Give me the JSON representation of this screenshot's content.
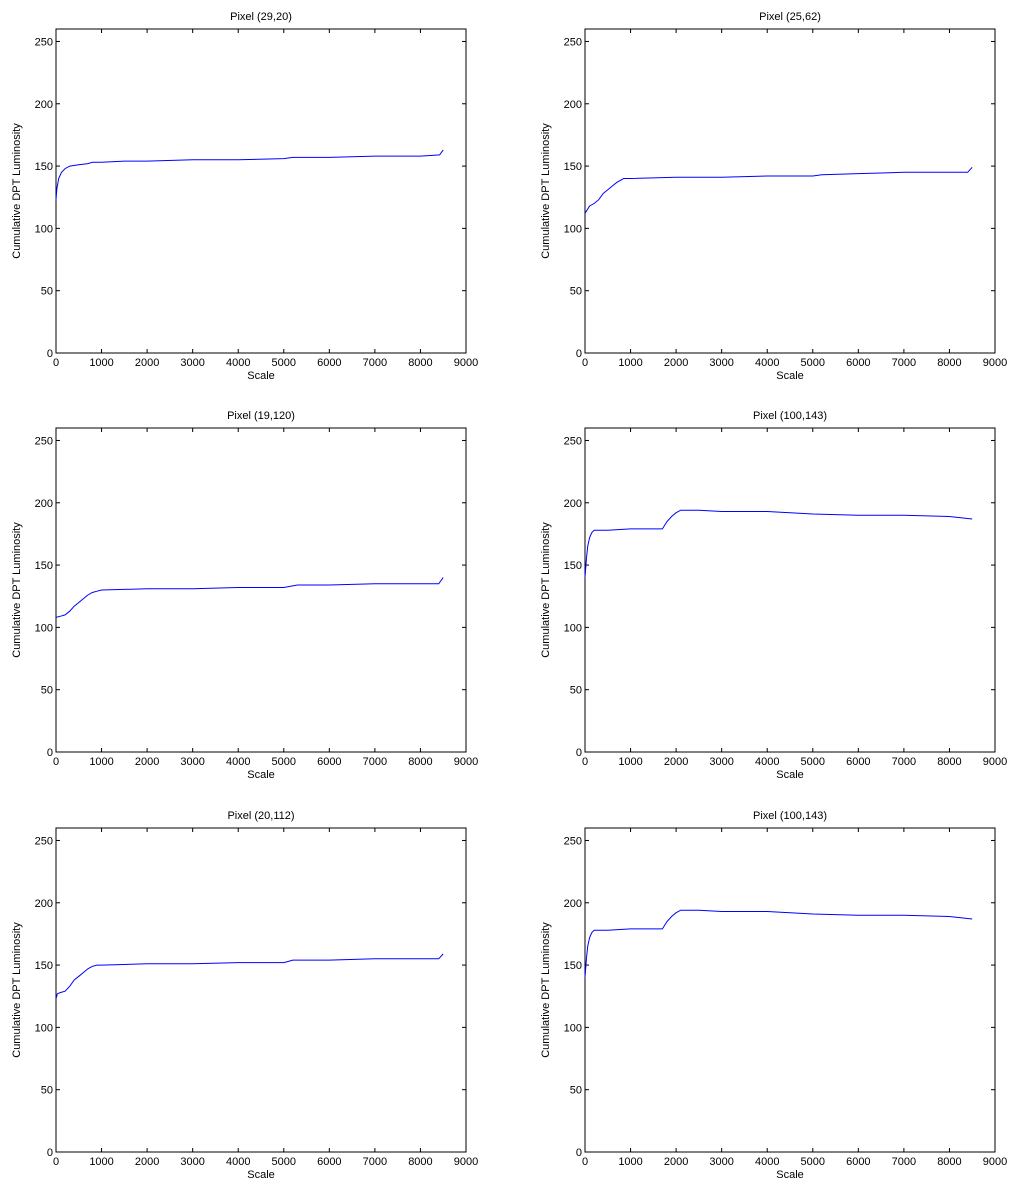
{
  "chart_data": [
    {
      "type": "line",
      "title": "Pixel (29,20)",
      "xlabel": "Scale",
      "ylabel": "Cumulative DPT Luminosity",
      "xlim": [
        0,
        9000
      ],
      "ylim": [
        0,
        260
      ],
      "xticks": [
        0,
        1000,
        2000,
        3000,
        4000,
        5000,
        6000,
        7000,
        8000,
        9000
      ],
      "yticks": [
        0,
        50,
        100,
        150,
        200,
        250
      ],
      "grid": false,
      "line_color": "#0000ff",
      "series": [
        {
          "x": [
            0,
            20,
            60,
            120,
            200,
            300,
            500,
            700,
            800,
            1000,
            1500,
            2000,
            3000,
            4000,
            5000,
            5200,
            6000,
            7000,
            8000,
            8420,
            8500
          ],
          "y": [
            123,
            132,
            140,
            145,
            148,
            150,
            151,
            152,
            153,
            153,
            154,
            154,
            155,
            155,
            156,
            157,
            157,
            158,
            158,
            159,
            163
          ]
        }
      ]
    },
    {
      "type": "line",
      "title": "Pixel (25,62)",
      "xlabel": "Scale",
      "ylabel": "Cumulative DPT Luminosity",
      "xlim": [
        0,
        9000
      ],
      "ylim": [
        0,
        260
      ],
      "xticks": [
        0,
        1000,
        2000,
        3000,
        4000,
        5000,
        6000,
        7000,
        8000,
        9000
      ],
      "yticks": [
        0,
        50,
        100,
        150,
        200,
        250
      ],
      "grid": false,
      "line_color": "#0000ff",
      "series": [
        {
          "x": [
            0,
            50,
            100,
            200,
            300,
            400,
            500,
            600,
            700,
            800,
            850,
            1000,
            2000,
            3000,
            4000,
            5000,
            5200,
            6000,
            7000,
            8000,
            8400,
            8500
          ],
          "y": [
            112,
            115,
            118,
            120,
            123,
            128,
            131,
            134,
            137,
            139,
            140,
            140,
            141,
            141,
            142,
            142,
            143,
            144,
            145,
            145,
            145,
            149
          ]
        }
      ]
    },
    {
      "type": "line",
      "title": "Pixel (19,120)",
      "xlabel": "Scale",
      "ylabel": "Cumulative DPT Luminosity",
      "xlim": [
        0,
        9000
      ],
      "ylim": [
        0,
        260
      ],
      "xticks": [
        0,
        1000,
        2000,
        3000,
        4000,
        5000,
        6000,
        7000,
        8000,
        9000
      ],
      "yticks": [
        0,
        50,
        100,
        150,
        200,
        250
      ],
      "grid": false,
      "line_color": "#0000ff",
      "series": [
        {
          "x": [
            0,
            100,
            200,
            300,
            400,
            500,
            600,
            700,
            800,
            900,
            1000,
            2000,
            3000,
            4000,
            5000,
            5300,
            6000,
            7000,
            8000,
            8400,
            8500
          ],
          "y": [
            108,
            109,
            110,
            113,
            117,
            120,
            123,
            126,
            128,
            129,
            130,
            131,
            131,
            132,
            132,
            134,
            134,
            135,
            135,
            135,
            140
          ]
        }
      ]
    },
    {
      "type": "line",
      "title": "Pixel (100,143)",
      "xlabel": "Scale",
      "ylabel": "Cumulative DPT Luminosity",
      "xlim": [
        0,
        9000
      ],
      "ylim": [
        0,
        260
      ],
      "xticks": [
        0,
        1000,
        2000,
        3000,
        4000,
        5000,
        6000,
        7000,
        8000,
        9000
      ],
      "yticks": [
        0,
        50,
        100,
        150,
        200,
        250
      ],
      "grid": false,
      "line_color": "#0000ff",
      "series": [
        {
          "x": [
            0,
            30,
            60,
            100,
            150,
            200,
            500,
            1000,
            1700,
            1800,
            1900,
            2000,
            2100,
            2500,
            3000,
            4000,
            5000,
            6000,
            7000,
            8000,
            8500
          ],
          "y": [
            140,
            155,
            165,
            172,
            176,
            178,
            178,
            179,
            179,
            185,
            189,
            192,
            194,
            194,
            193,
            193,
            191,
            190,
            190,
            189,
            187
          ]
        }
      ]
    },
    {
      "type": "line",
      "title": "Pixel (20,112)",
      "xlabel": "Scale",
      "ylabel": "Cumulative DPT Luminosity",
      "xlim": [
        0,
        9000
      ],
      "ylim": [
        0,
        260
      ],
      "xticks": [
        0,
        1000,
        2000,
        3000,
        4000,
        5000,
        6000,
        7000,
        8000,
        9000
      ],
      "yticks": [
        0,
        50,
        100,
        150,
        200,
        250
      ],
      "grid": false,
      "line_color": "#0000ff",
      "series": [
        {
          "x": [
            0,
            30,
            100,
            200,
            300,
            400,
            500,
            600,
            700,
            800,
            900,
            1000,
            2000,
            3000,
            4000,
            5000,
            5200,
            6000,
            7000,
            8000,
            8400,
            8500
          ],
          "y": [
            123,
            127,
            128,
            129,
            133,
            138,
            141,
            144,
            147,
            149,
            150,
            150,
            151,
            151,
            152,
            152,
            154,
            154,
            155,
            155,
            155,
            159
          ]
        }
      ]
    },
    {
      "type": "line",
      "title": "Pixel (100,143)",
      "xlabel": "Scale",
      "ylabel": "Cumulative DPT Luminosity",
      "xlim": [
        0,
        9000
      ],
      "ylim": [
        0,
        260
      ],
      "xticks": [
        0,
        1000,
        2000,
        3000,
        4000,
        5000,
        6000,
        7000,
        8000,
        9000
      ],
      "yticks": [
        0,
        50,
        100,
        150,
        200,
        250
      ],
      "grid": false,
      "line_color": "#0000ff",
      "series": [
        {
          "x": [
            0,
            30,
            60,
            100,
            150,
            200,
            500,
            1000,
            1700,
            1800,
            1900,
            2000,
            2100,
            2500,
            3000,
            4000,
            5000,
            6000,
            7000,
            8000,
            8500
          ],
          "y": [
            140,
            155,
            165,
            172,
            176,
            178,
            178,
            179,
            179,
            185,
            189,
            192,
            194,
            194,
            193,
            193,
            191,
            190,
            190,
            189,
            187
          ]
        }
      ]
    }
  ]
}
